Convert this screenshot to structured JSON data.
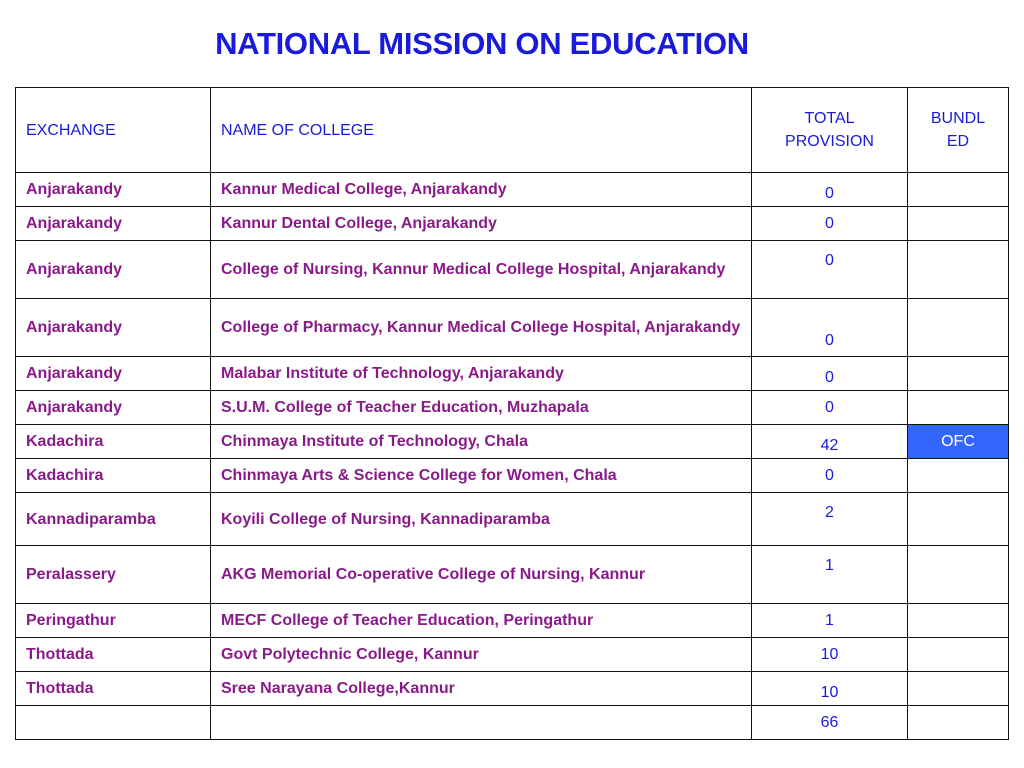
{
  "title": "NATIONAL MISSION ON EDUCATION",
  "colors": {
    "title": "#1a1adb",
    "cell_text": "#8a1a8a",
    "header_text": "#1a1adb",
    "ofc_fill": "#3366ff"
  },
  "headers": {
    "exchange": "EXCHANGE",
    "college": "NAME OF COLLEGE",
    "total_line1": "TOTAL",
    "total_line2": "PROVISION",
    "bundled_line1": "BUNDL",
    "bundled_line2": "ED"
  },
  "rows": [
    {
      "exchange": "Anjarakandy",
      "college": "Kannur Medical College, Anjarakandy",
      "total": "0",
      "bundled": ""
    },
    {
      "exchange": "Anjarakandy",
      "college": "Kannur Dental College, Anjarakandy",
      "total": "0",
      "bundled": ""
    },
    {
      "exchange": "Anjarakandy",
      "college": "College of Nursing, Kannur Medical College Hospital, Anjarakandy",
      "total": "0",
      "bundled": ""
    },
    {
      "exchange": "Anjarakandy",
      "college": "College of Pharmacy, Kannur Medical College Hospital, Anjarakandy",
      "total": "0",
      "bundled": ""
    },
    {
      "exchange": "Anjarakandy",
      "college": "Malabar Institute of Technology, Anjarakandy",
      "total": "0",
      "bundled": ""
    },
    {
      "exchange": "Anjarakandy",
      "college": "S.U.M. College of Teacher Education, Muzhapala",
      "total": "0",
      "bundled": ""
    },
    {
      "exchange": "Kadachira",
      "college": "Chinmaya Institute of Technology, Chala",
      "total": "42",
      "bundled": "OFC"
    },
    {
      "exchange": "Kadachira",
      "college": "Chinmaya Arts & Science College for Women, Chala",
      "total": "0",
      "bundled": ""
    },
    {
      "exchange": "Kannadiparamba",
      "college": "Koyili College of Nursing, Kannadiparamba",
      "total": "2",
      "bundled": ""
    },
    {
      "exchange": "Peralassery",
      "college": "AKG Memorial Co-operative College of Nursing, Kannur",
      "total": "1",
      "bundled": ""
    },
    {
      "exchange": "Peringathur",
      "college": "MECF College of Teacher Education, Peringathur",
      "total": "1",
      "bundled": ""
    },
    {
      "exchange": "Thottada",
      "college": "Govt Polytechnic College, Kannur",
      "total": "10",
      "bundled": ""
    },
    {
      "exchange": "Thottada",
      "college": "Sree Narayana College,Kannur",
      "total": "10",
      "bundled": ""
    }
  ],
  "footer": {
    "exchange": "",
    "college": "",
    "total": "66",
    "bundled": ""
  }
}
